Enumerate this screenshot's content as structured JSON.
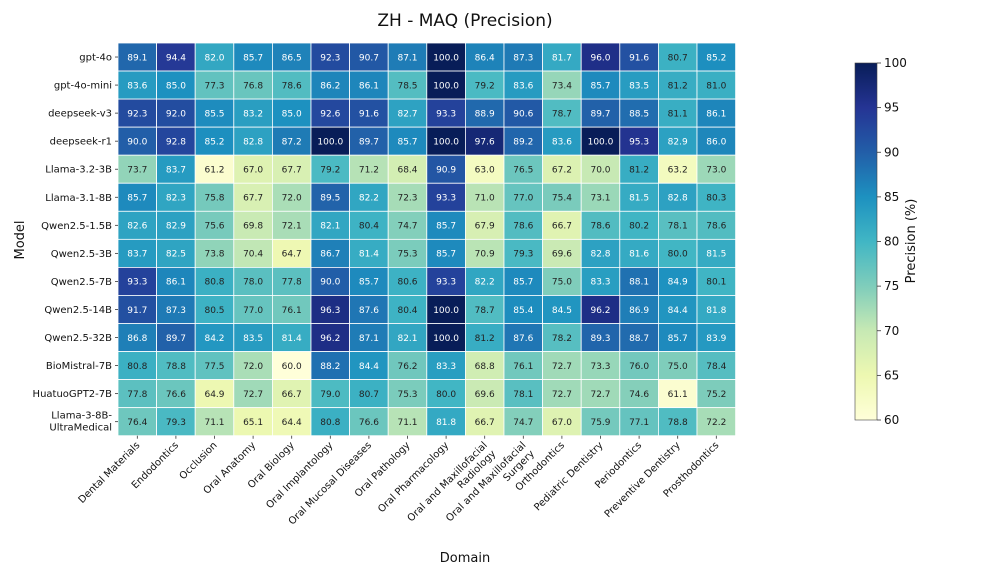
{
  "chart_data": {
    "type": "heatmap",
    "title": "ZH - MAQ (Precision)",
    "xlabel": "Domain",
    "ylabel": "Model",
    "colorbar_label": "Precision (%)",
    "colorbar_range": [
      60,
      100
    ],
    "colorbar_ticks": [
      "100",
      "95",
      "90",
      "85",
      "80",
      "75",
      "70",
      "65",
      "60"
    ],
    "colormap": [
      "#ffffd9",
      "#edf8b1",
      "#c7e9b4",
      "#7fcdbb",
      "#41b6c4",
      "#1d91c0",
      "#225ea8",
      "#253494",
      "#081d58"
    ],
    "columns": [
      "Dental Materials",
      "Endodontics",
      "Occlusion",
      "Oral Anatomy",
      "Oral Biology",
      "Oral Implantology",
      "Oral Mucosal Diseases",
      "Oral Pathology",
      "Oral Pharmacology",
      "Oral and Maxillofacial Radiology",
      "Oral and Maxillofacial Surgery",
      "Orthodontics",
      "Pediatric Dentistry",
      "Periodontics",
      "Preventive Dentistry",
      "Prosthodontics"
    ],
    "rows": [
      "gpt-4o",
      "gpt-4o-mini",
      "deepseek-v3",
      "deepseek-r1",
      "Llama-3.2-3B",
      "Llama-3.1-8B",
      "Qwen2.5-1.5B",
      "Qwen2.5-3B",
      "Qwen2.5-7B",
      "Qwen2.5-14B",
      "Qwen2.5-32B",
      "BioMistral-7B",
      "HuatuoGPT2-7B",
      "Llama-3-8B-UltraMedical"
    ],
    "values": [
      [
        89.1,
        94.4,
        82.0,
        85.7,
        86.5,
        92.3,
        90.7,
        87.1,
        100.0,
        86.4,
        87.3,
        81.7,
        96.0,
        91.6,
        80.7,
        85.2
      ],
      [
        83.6,
        85.0,
        77.3,
        76.8,
        78.6,
        86.2,
        86.1,
        78.5,
        100.0,
        79.2,
        83.6,
        73.4,
        85.7,
        83.5,
        81.2,
        81.0
      ],
      [
        92.3,
        92.0,
        85.5,
        83.2,
        85.0,
        92.6,
        91.6,
        82.7,
        93.3,
        88.9,
        90.6,
        78.7,
        89.7,
        88.5,
        81.1,
        86.1
      ],
      [
        90.0,
        92.8,
        85.2,
        82.8,
        87.2,
        100.0,
        89.7,
        85.7,
        100.0,
        97.6,
        89.2,
        83.6,
        100.0,
        95.3,
        82.9,
        86.0
      ],
      [
        73.7,
        83.7,
        61.2,
        67.0,
        67.7,
        79.2,
        71.2,
        68.4,
        90.9,
        63.0,
        76.5,
        67.2,
        70.0,
        81.2,
        63.2,
        73.0
      ],
      [
        85.7,
        82.3,
        75.8,
        67.7,
        72.0,
        89.5,
        82.2,
        72.3,
        93.3,
        71.0,
        77.0,
        75.4,
        73.1,
        81.5,
        82.8,
        80.3
      ],
      [
        82.6,
        82.9,
        75.6,
        69.8,
        72.1,
        82.1,
        80.4,
        74.7,
        85.7,
        67.9,
        78.6,
        66.7,
        78.6,
        80.2,
        78.1,
        78.6
      ],
      [
        83.7,
        82.5,
        73.8,
        70.4,
        64.7,
        86.7,
        81.4,
        75.3,
        85.7,
        70.9,
        79.3,
        69.6,
        82.8,
        81.6,
        80.0,
        81.5
      ],
      [
        93.3,
        86.1,
        80.8,
        78.0,
        77.8,
        90.0,
        85.7,
        80.6,
        93.3,
        82.2,
        85.7,
        75.0,
        83.3,
        88.1,
        84.9,
        80.1
      ],
      [
        91.7,
        87.3,
        80.5,
        77.0,
        76.1,
        96.3,
        87.6,
        80.4,
        100.0,
        78.7,
        85.4,
        84.5,
        96.2,
        86.9,
        84.4,
        81.8
      ],
      [
        86.8,
        89.7,
        84.2,
        83.5,
        81.4,
        96.2,
        87.1,
        82.1,
        100.0,
        81.2,
        87.6,
        78.2,
        89.3,
        88.7,
        85.7,
        83.9
      ],
      [
        80.8,
        78.8,
        77.5,
        72.0,
        60.0,
        88.2,
        84.4,
        76.2,
        83.3,
        68.8,
        76.1,
        72.7,
        73.3,
        76.0,
        75.0,
        78.4
      ],
      [
        77.8,
        76.6,
        64.9,
        72.7,
        66.7,
        79.0,
        80.7,
        75.3,
        80.0,
        69.6,
        78.1,
        72.7,
        72.7,
        74.6,
        61.1,
        75.2
      ],
      [
        76.4,
        79.3,
        71.1,
        65.1,
        64.4,
        80.8,
        76.6,
        71.1,
        81.8,
        66.7,
        74.7,
        67.0,
        75.9,
        77.1,
        78.8,
        72.2
      ]
    ]
  }
}
